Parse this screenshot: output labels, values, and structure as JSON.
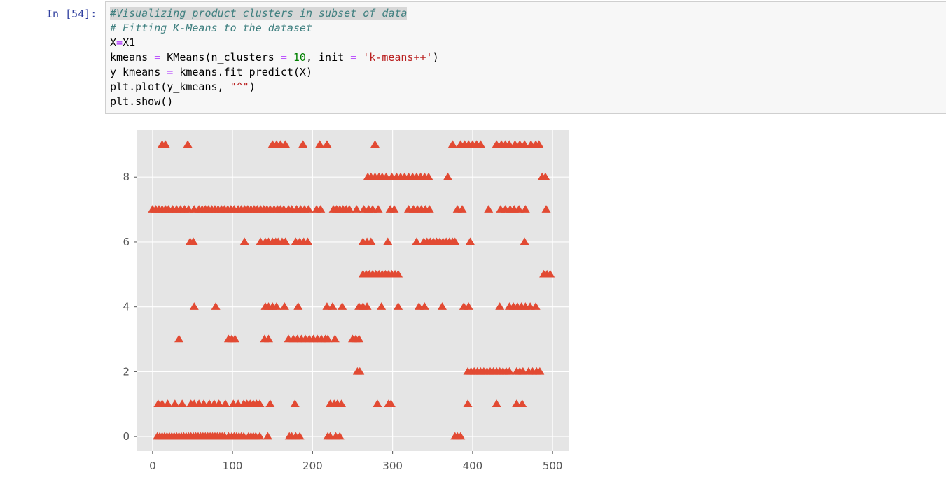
{
  "cell": {
    "prompt": "In [54]:",
    "code_lines": [
      [
        {
          "t": "#Visualizing product clusters in subset of data",
          "c": "cm hl"
        }
      ],
      [
        {
          "t": "# Fitting K-Means to the dataset",
          "c": "cm"
        }
      ],
      [
        {
          "t": "X",
          "c": ""
        },
        {
          "t": "=",
          "c": "op"
        },
        {
          "t": "X1",
          "c": ""
        }
      ],
      [
        {
          "t": "kmeans ",
          "c": ""
        },
        {
          "t": "=",
          "c": "op"
        },
        {
          "t": " KMeans(n_clusters ",
          "c": ""
        },
        {
          "t": "=",
          "c": "op"
        },
        {
          "t": " ",
          "c": ""
        },
        {
          "t": "10",
          "c": "num"
        },
        {
          "t": ", init ",
          "c": ""
        },
        {
          "t": "=",
          "c": "op"
        },
        {
          "t": " ",
          "c": ""
        },
        {
          "t": "'k-means++'",
          "c": "str"
        },
        {
          "t": ")",
          "c": ""
        }
      ],
      [
        {
          "t": "y_kmeans ",
          "c": ""
        },
        {
          "t": "=",
          "c": "op"
        },
        {
          "t": " kmeans.fit_predict(X)",
          "c": ""
        }
      ],
      [
        {
          "t": "plt.plot(y_kmeans, ",
          "c": ""
        },
        {
          "t": "\"^\"",
          "c": "str"
        },
        {
          "t": ")",
          "c": ""
        }
      ],
      [
        {
          "t": "plt.show()",
          "c": ""
        }
      ]
    ]
  },
  "chart_data": {
    "type": "scatter",
    "marker": "triangle-up",
    "color": "#e24a33",
    "background": "#e5e5e5",
    "grid": true,
    "xlim": [
      -20,
      520
    ],
    "ylim": [
      -0.45,
      9.45
    ],
    "xticks": [
      0,
      100,
      200,
      300,
      400,
      500
    ],
    "yticks": [
      0,
      2,
      4,
      6,
      8
    ],
    "xlabel": "",
    "ylabel": "",
    "series_by_cluster": [
      {
        "y": 0,
        "x": [
          6,
          9,
          12,
          15,
          18,
          21,
          24,
          27,
          30,
          33,
          36,
          39,
          42,
          45,
          48,
          51,
          54,
          57,
          60,
          63,
          66,
          69,
          72,
          75,
          78,
          81,
          84,
          87,
          90,
          95,
          99,
          102,
          105,
          108,
          111,
          114,
          120,
          123,
          126,
          129,
          134,
          144,
          171,
          174,
          179,
          184,
          219,
          222,
          229,
          234,
          378,
          381,
          385
        ]
      },
      {
        "y": 1,
        "x": [
          7,
          12,
          19,
          28,
          37,
          48,
          52,
          58,
          64,
          71,
          77,
          83,
          91,
          101,
          107,
          114,
          118,
          122,
          126,
          130,
          134,
          147,
          178,
          222,
          227,
          231,
          236,
          281,
          295,
          298,
          394,
          430,
          455,
          462
        ]
      },
      {
        "y": 2,
        "x": [
          256,
          259,
          394,
          398,
          402,
          406,
          410,
          414,
          418,
          422,
          426,
          430,
          434,
          438,
          442,
          446,
          455,
          459,
          463,
          470,
          475,
          480,
          484
        ]
      },
      {
        "y": 3,
        "x": [
          33,
          95,
          99,
          103,
          140,
          145,
          170,
          176,
          181,
          186,
          191,
          196,
          201,
          206,
          211,
          216,
          219,
          228,
          250,
          254,
          258
        ]
      },
      {
        "y": 4,
        "x": [
          52,
          79,
          141,
          145,
          150,
          155,
          165,
          182,
          218,
          225,
          237,
          258,
          263,
          268,
          286,
          307,
          333,
          340,
          362,
          389,
          395,
          434,
          446,
          451,
          456,
          461,
          466,
          472,
          479
        ]
      },
      {
        "y": 5,
        "x": [
          263,
          267,
          271,
          275,
          279,
          283,
          287,
          291,
          295,
          299,
          303,
          307,
          489,
          493,
          497
        ]
      },
      {
        "y": 6,
        "x": [
          47,
          51,
          115,
          135,
          141,
          145,
          150,
          154,
          157,
          162,
          166,
          179,
          184,
          189,
          194,
          263,
          268,
          273,
          294,
          330,
          339,
          343,
          347,
          351,
          355,
          359,
          363,
          367,
          371,
          375,
          378,
          397,
          465
        ]
      },
      {
        "y": 7,
        "x": [
          0,
          4,
          8,
          12,
          16,
          20,
          25,
          30,
          35,
          40,
          45,
          52,
          58,
          62,
          66,
          70,
          74,
          78,
          82,
          86,
          90,
          94,
          98,
          102,
          107,
          111,
          115,
          119,
          123,
          127,
          131,
          135,
          139,
          143,
          147,
          152,
          156,
          160,
          164,
          170,
          174,
          180,
          185,
          190,
          195,
          205,
          210,
          226,
          230,
          234,
          238,
          242,
          246,
          255,
          264,
          270,
          275,
          282,
          297,
          302,
          320,
          326,
          331,
          336,
          341,
          346,
          381,
          387,
          420,
          435,
          441,
          447,
          452,
          458,
          466,
          492
        ]
      },
      {
        "y": 8,
        "x": [
          269,
          273,
          278,
          283,
          287,
          292,
          299,
          305,
          310,
          315,
          320,
          325,
          330,
          335,
          340,
          345,
          369,
          487,
          491
        ]
      },
      {
        "y": 9,
        "x": [
          12,
          16,
          44,
          150,
          155,
          160,
          166,
          188,
          209,
          218,
          278,
          375,
          385,
          390,
          395,
          400,
          405,
          410,
          430,
          436,
          441,
          446,
          453,
          459,
          465,
          473,
          479,
          483
        ]
      }
    ]
  }
}
